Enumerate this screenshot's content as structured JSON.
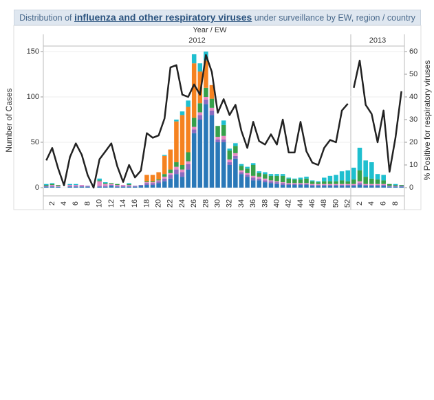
{
  "header": {
    "title_parts": [
      "Distribution of ",
      "influenza and other respiratory viruses",
      " under surveillance by EW, region / country"
    ],
    "x_group_label": "Year / EW"
  },
  "chart_data": [
    {
      "type": "bar",
      "title": "2012",
      "y_label": "Number of Cases",
      "ylim": [
        0,
        150
      ],
      "yticks": [
        0,
        50,
        100,
        150
      ],
      "y2lim": [
        0,
        60
      ],
      "grid": true,
      "categories": [
        null,
        "2",
        null,
        "4",
        null,
        "6",
        null,
        "8",
        null,
        "10",
        null,
        "12",
        null,
        "14",
        null,
        "16",
        null,
        "18",
        null,
        "20",
        null,
        "22",
        null,
        "24",
        null,
        "26",
        null,
        "28",
        null,
        "30",
        null,
        "32",
        null,
        "34",
        null,
        "36",
        null,
        "38",
        null,
        "40",
        null,
        "42",
        null,
        "44",
        null,
        "46",
        null,
        "48",
        null,
        "50",
        null,
        "52"
      ],
      "series": [
        {
          "color": "#2a78b8",
          "values": [
            1,
            1,
            1,
            0,
            1,
            1,
            1,
            1,
            0,
            1,
            1,
            2,
            1,
            1,
            1,
            1,
            2,
            3,
            3,
            5,
            7,
            10,
            15,
            12,
            20,
            60,
            75,
            92,
            80,
            50,
            50,
            25,
            32,
            15,
            12,
            8,
            8,
            6,
            5,
            4,
            3,
            3,
            3,
            3,
            3,
            2,
            2,
            2,
            2,
            2,
            2,
            2
          ]
        },
        {
          "color": "#8a6cc0",
          "values": [
            1,
            1,
            0,
            0,
            1,
            1,
            1,
            1,
            0,
            1,
            1,
            1,
            1,
            1,
            1,
            1,
            1,
            2,
            2,
            2,
            3,
            4,
            5,
            5,
            6,
            4,
            5,
            5,
            5,
            3,
            3,
            3,
            3,
            2,
            2,
            3,
            2,
            2,
            2,
            2,
            2,
            1,
            1,
            1,
            1,
            1,
            1,
            1,
            1,
            1,
            1,
            1
          ]
        },
        {
          "color": "#e88ac4",
          "values": [
            0,
            1,
            1,
            0,
            1,
            1,
            1,
            0,
            0,
            5,
            2,
            1,
            1,
            1,
            1,
            0,
            0,
            1,
            1,
            1,
            2,
            2,
            3,
            3,
            3,
            3,
            3,
            3,
            3,
            3,
            4,
            3,
            3,
            2,
            2,
            2,
            2,
            2,
            1,
            1,
            1,
            1,
            1,
            1,
            1,
            1,
            1,
            1,
            1,
            1,
            1,
            1
          ]
        },
        {
          "color": "#36a04a",
          "values": [
            1,
            1,
            1,
            0,
            0,
            0,
            0,
            0,
            0,
            1,
            1,
            1,
            1,
            0,
            1,
            0,
            0,
            1,
            1,
            1,
            3,
            4,
            5,
            5,
            10,
            10,
            10,
            10,
            10,
            12,
            12,
            10,
            8,
            5,
            5,
            12,
            4,
            5,
            5,
            6,
            7,
            5,
            4,
            4,
            5,
            3,
            2,
            3,
            3,
            3,
            4,
            3
          ]
        },
        {
          "color": "#f58220",
          "values": [
            0,
            0,
            0,
            0,
            0,
            0,
            0,
            0,
            0,
            0,
            0,
            0,
            0,
            0,
            0,
            0,
            0,
            7,
            7,
            8,
            20,
            22,
            45,
            55,
            50,
            60,
            35,
            30,
            15,
            0,
            0,
            0,
            0,
            0,
            0,
            0,
            0,
            0,
            0,
            0,
            0,
            0,
            0,
            0,
            0,
            0,
            0,
            0,
            0,
            0,
            0,
            0
          ]
        },
        {
          "color": "#1fbfcf",
          "values": [
            1,
            1,
            0,
            0,
            1,
            1,
            0,
            0,
            0,
            2,
            1,
            0,
            0,
            0,
            1,
            0,
            0,
            0,
            0,
            0,
            1,
            0,
            2,
            4,
            7,
            10,
            9,
            10,
            0,
            0,
            5,
            2,
            3,
            2,
            2,
            2,
            2,
            2,
            2,
            2,
            2,
            1,
            1,
            2,
            2,
            1,
            1,
            4,
            6,
            7,
            10,
            12
          ]
        },
        {
          "color": "#222222",
          "axis": "y2",
          "values": [
            12,
            17.5,
            8.5,
            1,
            13.5,
            19.5,
            14.5,
            5.5,
            0,
            12.5,
            16,
            19.5,
            9.5,
            2.5,
            10,
            4.5,
            7.5,
            24,
            22,
            23,
            30.5,
            53,
            54,
            41,
            40,
            45.5,
            41,
            58.5,
            51,
            33,
            39,
            32,
            36.5,
            25,
            17.5,
            29,
            20.5,
            19,
            23.5,
            19,
            30,
            15.5,
            15.5,
            29,
            16,
            11,
            10,
            17.5,
            21,
            20,
            34,
            37
          ]
        }
      ]
    },
    {
      "type": "bar",
      "title": "2013",
      "y2_label": "% Positive for respiratory viruses",
      "ylim": [
        0,
        150
      ],
      "y2lim": [
        0,
        60
      ],
      "y2ticks": [
        0,
        10,
        20,
        30,
        40,
        50,
        60
      ],
      "categories": [
        null,
        "2",
        null,
        "4",
        null,
        "6",
        null,
        "8",
        null
      ],
      "series": [
        {
          "color": "#2a78b8",
          "values": [
            2,
            3,
            2,
            2,
            2,
            2,
            1,
            1,
            1
          ]
        },
        {
          "color": "#8a6cc0",
          "values": [
            1,
            2,
            1,
            1,
            1,
            1,
            1,
            1,
            1
          ]
        },
        {
          "color": "#e88ac4",
          "values": [
            1,
            2,
            1,
            1,
            1,
            1,
            0,
            0,
            0
          ]
        },
        {
          "color": "#36a04a",
          "values": [
            5,
            12,
            8,
            6,
            5,
            4,
            2,
            1,
            1
          ]
        },
        {
          "color": "#f58220",
          "values": [
            0,
            0,
            0,
            0,
            0,
            0,
            0,
            0,
            0
          ]
        },
        {
          "color": "#1fbfcf",
          "values": [
            13,
            25,
            18,
            18,
            6,
            6,
            0,
            1,
            0
          ]
        },
        {
          "color": "#222222",
          "axis": "y2",
          "values": [
            44,
            56,
            36.5,
            32.5,
            20,
            34,
            7,
            22,
            42.5
          ]
        }
      ]
    }
  ]
}
